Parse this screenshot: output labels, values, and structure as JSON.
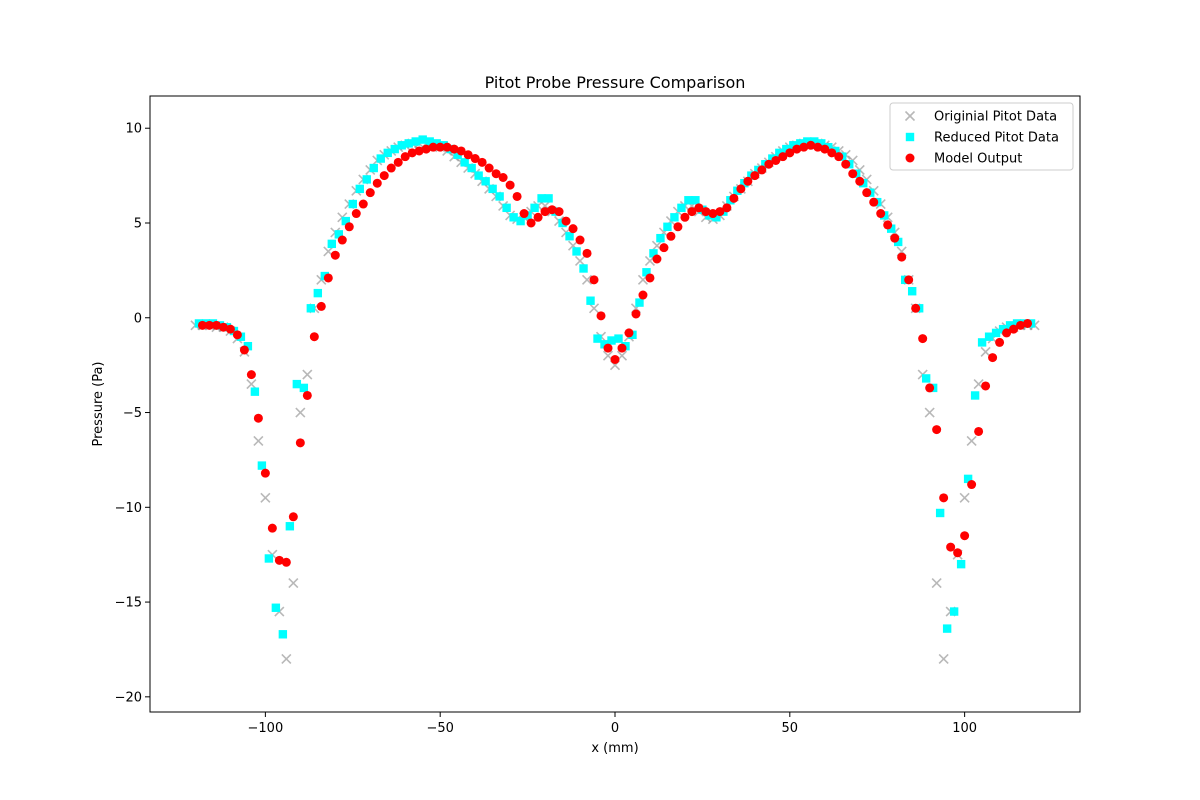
{
  "chart_data": {
    "type": "scatter",
    "title": "Pitot Probe Pressure Comparison",
    "xlabel": "x (mm)",
    "ylabel": "Pressure (Pa)",
    "xlim": [
      -133,
      133
    ],
    "ylim": [
      -20.8,
      11.7
    ],
    "xticks": [
      -100,
      -50,
      0,
      50,
      100
    ],
    "xtick_labels": [
      "−100",
      "−50",
      "0",
      "50",
      "100"
    ],
    "yticks": [
      10,
      5,
      0,
      -5,
      -10,
      -15,
      -20
    ],
    "ytick_labels": [
      "10",
      "5",
      "0",
      "−5",
      "−10",
      "−15",
      "−20"
    ],
    "grid": false,
    "legend_position": "top-right",
    "series": [
      {
        "name": "Originial Pitot Data",
        "marker": "x",
        "color": "#7f7f7f",
        "x": [
          -120,
          -118,
          -116,
          -114,
          -112,
          -110,
          -108,
          -106,
          -104,
          -102,
          -100,
          -98,
          -96,
          -94,
          -92,
          -90,
          -88,
          -86,
          -84,
          -82,
          -80,
          -78,
          -76,
          -74,
          -72,
          -70,
          -68,
          -66,
          -64,
          -62,
          -60,
          -58,
          -56,
          -54,
          -52,
          -50,
          -48,
          -46,
          -44,
          -42,
          -40,
          -38,
          -36,
          -34,
          -32,
          -30,
          -28,
          -26,
          -24,
          -22,
          -20,
          -18,
          -16,
          -14,
          -12,
          -10,
          -8,
          -6,
          -4,
          -2,
          0,
          2,
          4,
          6,
          8,
          10,
          12,
          14,
          16,
          18,
          20,
          22,
          24,
          26,
          28,
          30,
          32,
          34,
          36,
          38,
          40,
          42,
          44,
          46,
          48,
          50,
          52,
          54,
          56,
          58,
          60,
          62,
          64,
          66,
          68,
          70,
          72,
          74,
          76,
          78,
          80,
          82,
          84,
          86,
          88,
          90,
          92,
          94,
          96,
          98,
          100,
          102,
          104,
          106,
          108,
          110,
          112,
          114,
          116,
          118,
          120
        ],
        "y": [
          -0.4,
          -0.4,
          -0.4,
          -0.5,
          -0.5,
          -0.7,
          -1.1,
          -1.8,
          -3.5,
          -6.5,
          -9.5,
          -12.5,
          -15.5,
          -18,
          -14,
          -5,
          -3,
          0.5,
          2,
          3.5,
          4.5,
          5.3,
          6,
          6.7,
          7.3,
          7.8,
          8.3,
          8.6,
          8.8,
          9,
          9.1,
          9.2,
          9.2,
          9.2,
          9.1,
          9,
          8.8,
          8.5,
          8.2,
          7.9,
          7.6,
          7.2,
          6.8,
          6.4,
          5.9,
          5.4,
          5.2,
          5.3,
          5.6,
          5.9,
          5.9,
          5.6,
          5.1,
          4.5,
          3.8,
          3,
          2,
          0.5,
          -1,
          -2,
          -2.5,
          -2,
          -1,
          0.5,
          2,
          3,
          3.8,
          4.5,
          5.1,
          5.6,
          5.9,
          5.9,
          5.6,
          5.3,
          5.2,
          5.4,
          5.9,
          6.4,
          6.8,
          7.2,
          7.6,
          7.9,
          8.2,
          8.5,
          8.8,
          9,
          9.1,
          9.2,
          9.2,
          9.2,
          9.1,
          9,
          8.8,
          8.6,
          8.3,
          7.8,
          7.3,
          6.7,
          6,
          5.3,
          4.5,
          3.5,
          2,
          0.5,
          -3,
          -5,
          -14,
          -18,
          -15.5,
          -12.5,
          -9.5,
          -6.5,
          -3.5,
          -1.8,
          -1.1,
          -0.7,
          -0.5,
          -0.5,
          -0.4,
          -0.4,
          -0.4
        ]
      },
      {
        "name": "Reduced Pitot Data",
        "marker": "square",
        "color": "#00ffff",
        "x": [
          -119,
          -117,
          -115,
          -113,
          -111,
          -109,
          -107,
          -105,
          -103,
          -101,
          -99,
          -97,
          -95,
          -93,
          -91,
          -89,
          -87,
          -85,
          -83,
          -81,
          -79,
          -77,
          -75,
          -73,
          -71,
          -69,
          -67,
          -65,
          -63,
          -61,
          -59,
          -57,
          -55,
          -53,
          -51,
          -49,
          -47,
          -45,
          -43,
          -41,
          -39,
          -37,
          -35,
          -33,
          -31,
          -29,
          -27,
          -25,
          -23,
          -21,
          -19,
          -17,
          -15,
          -13,
          -11,
          -9,
          -7,
          -5,
          -3,
          -1,
          1,
          3,
          5,
          7,
          9,
          11,
          13,
          15,
          17,
          19,
          21,
          23,
          25,
          27,
          29,
          31,
          33,
          35,
          37,
          39,
          41,
          43,
          45,
          47,
          49,
          51,
          53,
          55,
          57,
          59,
          61,
          63,
          65,
          67,
          69,
          71,
          73,
          75,
          77,
          79,
          81,
          83,
          85,
          87,
          89,
          91,
          93,
          95,
          97,
          99,
          101,
          103,
          105,
          107,
          109,
          111,
          113,
          115,
          117,
          119
        ],
        "y": [
          -0.3,
          -0.3,
          -0.3,
          -0.4,
          -0.5,
          -0.7,
          -1,
          -1.5,
          -3.9,
          -7.8,
          -12.7,
          -15.3,
          -16.7,
          -11,
          -3.5,
          -3.7,
          0.5,
          1.3,
          2.2,
          3.9,
          4.4,
          5.1,
          6,
          6.8,
          7.3,
          7.9,
          8.4,
          8.7,
          8.9,
          9.1,
          9.2,
          9.3,
          9.4,
          9.3,
          9.2,
          9.1,
          8.9,
          8.6,
          8.2,
          7.9,
          7.5,
          7.2,
          6.8,
          6.4,
          5.8,
          5.3,
          5.1,
          5.4,
          5.8,
          6.3,
          6.3,
          5.6,
          5,
          4.3,
          3.5,
          2.6,
          0.9,
          -1.1,
          -1.4,
          -1.2,
          -1.1,
          -1.5,
          -0.9,
          0.8,
          2.4,
          3.4,
          4.2,
          4.8,
          5.3,
          5.8,
          6.2,
          6.2,
          5.7,
          5.4,
          5.3,
          5.6,
          6.2,
          6.7,
          7.1,
          7.5,
          7.8,
          8.1,
          8.4,
          8.7,
          8.9,
          9.1,
          9.2,
          9.3,
          9.3,
          9.2,
          9,
          8.8,
          8.5,
          8.1,
          7.6,
          7.1,
          6.6,
          6.1,
          5.4,
          4.7,
          4,
          2,
          1.4,
          0.5,
          -3.2,
          -3.7,
          -10.3,
          -16.4,
          -15.5,
          -13,
          -8.5,
          -4.1,
          -1.3,
          -1,
          -0.8,
          -0.6,
          -0.4,
          -0.3,
          -0.3,
          -0.3
        ]
      },
      {
        "name": "Model Output",
        "marker": "circle",
        "color": "#ff0000",
        "x": [
          -118,
          -116,
          -114,
          -112,
          -110,
          -108,
          -106,
          -104,
          -102,
          -100,
          -98,
          -96,
          -94,
          -92,
          -90,
          -88,
          -86,
          -84,
          -82,
          -80,
          -78,
          -76,
          -74,
          -72,
          -70,
          -68,
          -66,
          -64,
          -62,
          -60,
          -58,
          -56,
          -54,
          -52,
          -50,
          -48,
          -46,
          -44,
          -42,
          -40,
          -38,
          -36,
          -34,
          -32,
          -30,
          -28,
          -26,
          -24,
          -22,
          -20,
          -18,
          -16,
          -14,
          -12,
          -10,
          -8,
          -6,
          -4,
          -2,
          0,
          2,
          4,
          6,
          8,
          10,
          12,
          14,
          16,
          18,
          20,
          22,
          24,
          26,
          28,
          30,
          32,
          34,
          36,
          38,
          40,
          42,
          44,
          46,
          48,
          50,
          52,
          54,
          56,
          58,
          60,
          62,
          64,
          66,
          68,
          70,
          72,
          74,
          76,
          78,
          80,
          82,
          84,
          86,
          88,
          90,
          92,
          94,
          96,
          98,
          100,
          102,
          104,
          106,
          108,
          110,
          112,
          114,
          116,
          118
        ],
        "y": [
          -0.4,
          -0.4,
          -0.4,
          -0.5,
          -0.6,
          -0.9,
          -1.7,
          -3,
          -5.3,
          -8.2,
          -11.1,
          -12.8,
          -12.9,
          -10.5,
          -6.6,
          -4.1,
          -1,
          0.6,
          2.1,
          3.3,
          4.1,
          4.8,
          5.5,
          6,
          6.6,
          7.1,
          7.5,
          7.9,
          8.2,
          8.5,
          8.7,
          8.8,
          8.9,
          9,
          9,
          9,
          8.9,
          8.8,
          8.6,
          8.4,
          8.2,
          7.9,
          7.6,
          7.4,
          7,
          6.4,
          5.5,
          5,
          5.3,
          5.6,
          5.7,
          5.6,
          5.1,
          4.7,
          4.1,
          3.4,
          2,
          0.1,
          -1.6,
          -2.2,
          -1.6,
          -0.8,
          0.2,
          1.2,
          2.1,
          3.1,
          3.7,
          4.3,
          4.8,
          5.3,
          5.6,
          5.8,
          5.6,
          5.5,
          5.6,
          5.8,
          6.3,
          6.8,
          7.2,
          7.5,
          7.8,
          8.1,
          8.3,
          8.5,
          8.7,
          8.9,
          9,
          9.1,
          9,
          8.9,
          8.7,
          8.5,
          8.1,
          7.6,
          7.2,
          6.6,
          6.1,
          5.5,
          4.9,
          4.2,
          3.2,
          2,
          0.5,
          -1.1,
          -3.7,
          -5.9,
          -9.5,
          -12.1,
          -12.4,
          -11.5,
          -8.8,
          -6,
          -3.6,
          -2.1,
          -1.3,
          -0.8,
          -0.6,
          -0.4,
          -0.3
        ]
      }
    ]
  }
}
